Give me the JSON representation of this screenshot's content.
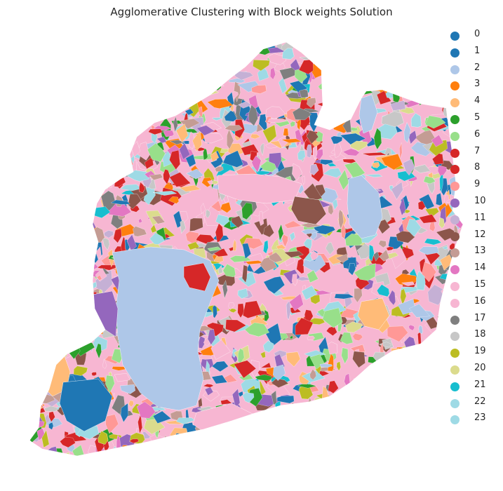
{
  "title": "Agglomerative Clustering with Block weights Solution",
  "legend": [
    {
      "label": "0",
      "color": "#1f77b4"
    },
    {
      "label": "1",
      "color": "#1f77b4"
    },
    {
      "label": "2",
      "color": "#aec7e8"
    },
    {
      "label": "3",
      "color": "#ff7f0e"
    },
    {
      "label": "4",
      "color": "#ffbb78"
    },
    {
      "label": "5",
      "color": "#2ca02c"
    },
    {
      "label": "6",
      "color": "#98df8a"
    },
    {
      "label": "7",
      "color": "#d62728"
    },
    {
      "label": "8",
      "color": "#d62728"
    },
    {
      "label": "9",
      "color": "#ff9896"
    },
    {
      "label": "10",
      "color": "#9467bd"
    },
    {
      "label": "11",
      "color": "#c5b0d5"
    },
    {
      "label": "12",
      "color": "#8c564b"
    },
    {
      "label": "13",
      "color": "#c49c94"
    },
    {
      "label": "14",
      "color": "#e377c2"
    },
    {
      "label": "15",
      "color": "#f7b6d2"
    },
    {
      "label": "16",
      "color": "#f7b6d2"
    },
    {
      "label": "17",
      "color": "#7f7f7f"
    },
    {
      "label": "18",
      "color": "#c7c7c7"
    },
    {
      "label": "19",
      "color": "#bcbd22"
    },
    {
      "label": "20",
      "color": "#dbdb8d"
    },
    {
      "label": "21",
      "color": "#17becf"
    },
    {
      "label": "22",
      "color": "#9edae5"
    },
    {
      "label": "23",
      "color": "#9edae5"
    }
  ],
  "map": {
    "base_color": "#f7b6d2",
    "background": "#ffffff"
  }
}
